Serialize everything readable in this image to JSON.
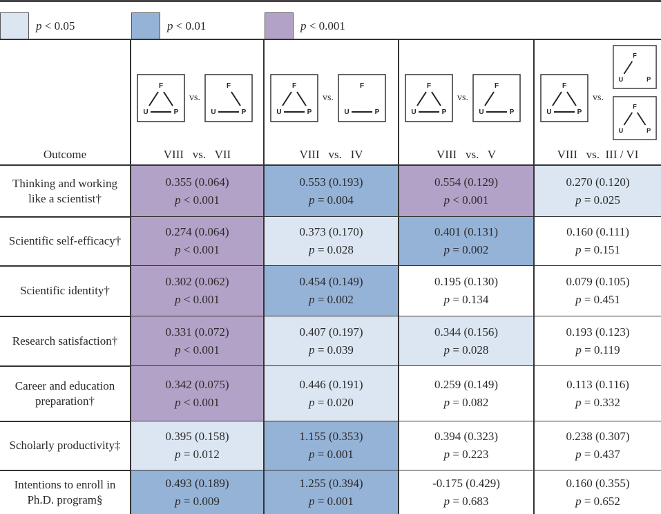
{
  "legend": [
    {
      "label_p": "p",
      "label_rest": " < 0.05",
      "color": "#dce6f2"
    },
    {
      "label_p": "p",
      "label_rest": " < 0.01",
      "color": "#95b3d7"
    },
    {
      "label_p": "p",
      "label_rest": " < 0.001",
      "color": "#b3a2c7"
    }
  ],
  "header": {
    "outcome_label": "Outcome",
    "vs_text": "vs.",
    "columns": [
      {
        "caption": "VIII   vs.   VII"
      },
      {
        "caption": "VIII   vs.   IV"
      },
      {
        "caption": "VIII   vs.   V"
      },
      {
        "caption": "VIII   vs.  III / VI"
      }
    ],
    "node_labels": {
      "f": "F",
      "u": "U",
      "p": "P"
    }
  },
  "rows": [
    {
      "label": "Thinking and working like a scientist†",
      "cells": [
        {
          "est": "0.355 (0.064)",
          "p": "p < 0.001",
          "sig": "s3"
        },
        {
          "est": "0.553 (0.193)",
          "p": "p = 0.004",
          "sig": "s2"
        },
        {
          "est": "0.554 (0.129)",
          "p": "p < 0.001",
          "sig": "s3"
        },
        {
          "est": "0.270 (0.120)",
          "p": "p = 0.025",
          "sig": "s1"
        }
      ]
    },
    {
      "label": "Scientific self-efficacy†",
      "cells": [
        {
          "est": "0.274 (0.064)",
          "p": "p < 0.001",
          "sig": "s3"
        },
        {
          "est": "0.373 (0.170)",
          "p": "p = 0.028",
          "sig": "s1"
        },
        {
          "est": "0.401 (0.131)",
          "p": "p = 0.002",
          "sig": "s2"
        },
        {
          "est": "0.160 (0.111)",
          "p": "p = 0.151",
          "sig": "none"
        }
      ]
    },
    {
      "label": "Scientific identity†",
      "cells": [
        {
          "est": "0.302 (0.062)",
          "p": "p < 0.001",
          "sig": "s3"
        },
        {
          "est": "0.454 (0.149)",
          "p": "p = 0.002",
          "sig": "s2"
        },
        {
          "est": "0.195 (0.130)",
          "p": "p = 0.134",
          "sig": "none"
        },
        {
          "est": "0.079 (0.105)",
          "p": "p = 0.451",
          "sig": "none"
        }
      ]
    },
    {
      "label": "Research satisfaction†",
      "cells": [
        {
          "est": "0.331 (0.072)",
          "p": "p < 0.001",
          "sig": "s3"
        },
        {
          "est": "0.407 (0.197)",
          "p": "p = 0.039",
          "sig": "s1"
        },
        {
          "est": "0.344 (0.156)",
          "p": "p = 0.028",
          "sig": "s1"
        },
        {
          "est": "0.193 (0.123)",
          "p": "p = 0.119",
          "sig": "none"
        }
      ]
    },
    {
      "label": "Career and education preparation†",
      "cells": [
        {
          "est": "0.342 (0.075)",
          "p": "p < 0.001",
          "sig": "s3"
        },
        {
          "est": "0.446 (0.191)",
          "p": "p = 0.020",
          "sig": "s1"
        },
        {
          "est": "0.259 (0.149)",
          "p": "p = 0.082",
          "sig": "none"
        },
        {
          "est": "0.113 (0.116)",
          "p": "p = 0.332",
          "sig": "none"
        }
      ]
    },
    {
      "label": "Scholarly productivity‡",
      "cells": [
        {
          "est": "0.395 (0.158)",
          "p": "p = 0.012",
          "sig": "s1"
        },
        {
          "est": "1.155 (0.353)",
          "p": "p = 0.001",
          "sig": "s2"
        },
        {
          "est": "0.394 (0.323)",
          "p": "p = 0.223",
          "sig": "none"
        },
        {
          "est": "0.238 (0.307)",
          "p": "p = 0.437",
          "sig": "none"
        }
      ]
    },
    {
      "label": "Intentions to enroll in Ph.D. program§",
      "cells": [
        {
          "est": "0.493 (0.189)",
          "p": "p = 0.009",
          "sig": "s2"
        },
        {
          "est": "1.255 (0.394)",
          "p": "p = 0.001",
          "sig": "s2"
        },
        {
          "est": "-0.175 (0.429)",
          "p": "p = 0.683",
          "sig": "none"
        },
        {
          "est": "0.160 (0.355)",
          "p": "p = 0.652",
          "sig": "none"
        }
      ]
    }
  ]
}
